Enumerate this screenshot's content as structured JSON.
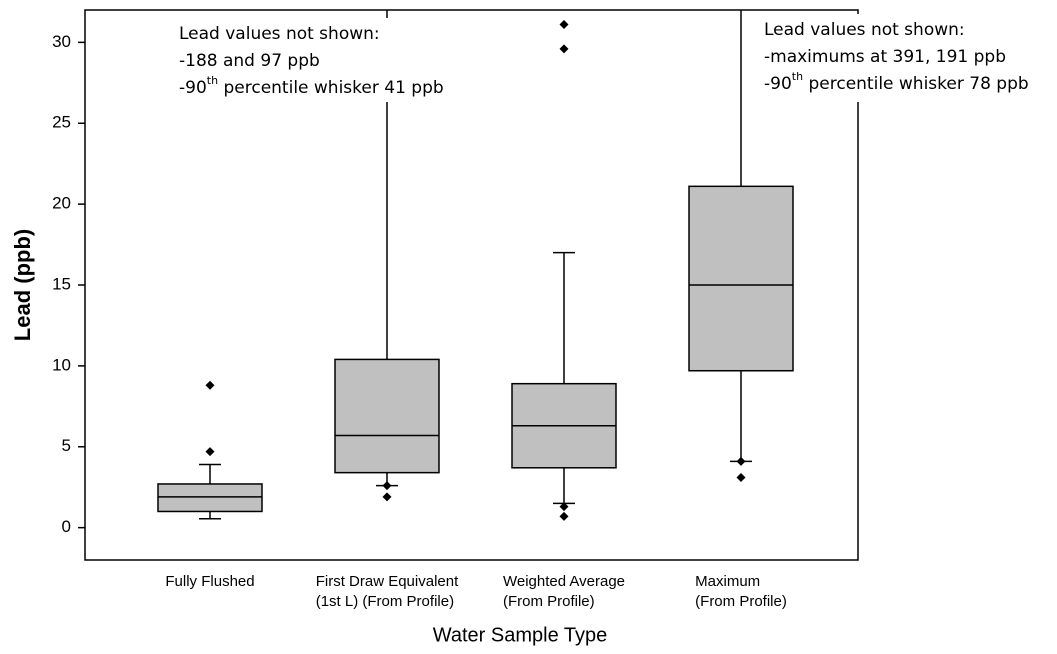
{
  "chart_data": {
    "type": "box",
    "x_label": "Water Sample Type",
    "y_label": "Lead (ppb)",
    "categories": [
      [
        "Fully Flushed"
      ],
      [
        "First Draw Equivalent",
        "(1st L) (From Profile)"
      ],
      [
        "Weighted Average",
        "(From Profile)"
      ],
      [
        "Maximum",
        "(From Profile)"
      ]
    ],
    "boxes": [
      {
        "whislo": 0.55,
        "q1": 1.0,
        "med": 1.9,
        "q3": 2.7,
        "whishi": 3.9,
        "fliers": [
          4.7,
          8.8
        ]
      },
      {
        "whislo": 2.6,
        "q1": 3.4,
        "med": 5.7,
        "q3": 10.4,
        "whishi": 41,
        "fliers": [
          1.9,
          2.6
        ]
      },
      {
        "whislo": 1.5,
        "q1": 3.7,
        "med": 6.3,
        "q3": 8.9,
        "whishi": 17,
        "fliers": [
          0.7,
          1.3,
          29.6,
          31.1
        ]
      },
      {
        "whislo": 4.1,
        "q1": 9.7,
        "med": 15,
        "q3": 21.1,
        "whishi": 78,
        "fliers": [
          4.1,
          3.1
        ]
      }
    ],
    "color": "#c0c0c0",
    "ylim": [
      -2,
      32
    ],
    "yticks": [
      0,
      5,
      10,
      15,
      20,
      25,
      30
    ],
    "annotations": [
      {
        "lines": [
          {
            "text": "Lead values not shown:"
          },
          {
            "text": "-188 and 97 ppb"
          },
          {
            "text": "-90",
            "sup": "th",
            "rest": " percentile whisker 41 ppb"
          }
        ]
      },
      {
        "lines": [
          {
            "text": "Lead values not shown:"
          },
          {
            "text": "-maximums at 391, 191 ppb"
          },
          {
            "text": "-90",
            "sup": "th",
            "rest": " percentile whisker 78 ppb"
          }
        ]
      }
    ]
  }
}
